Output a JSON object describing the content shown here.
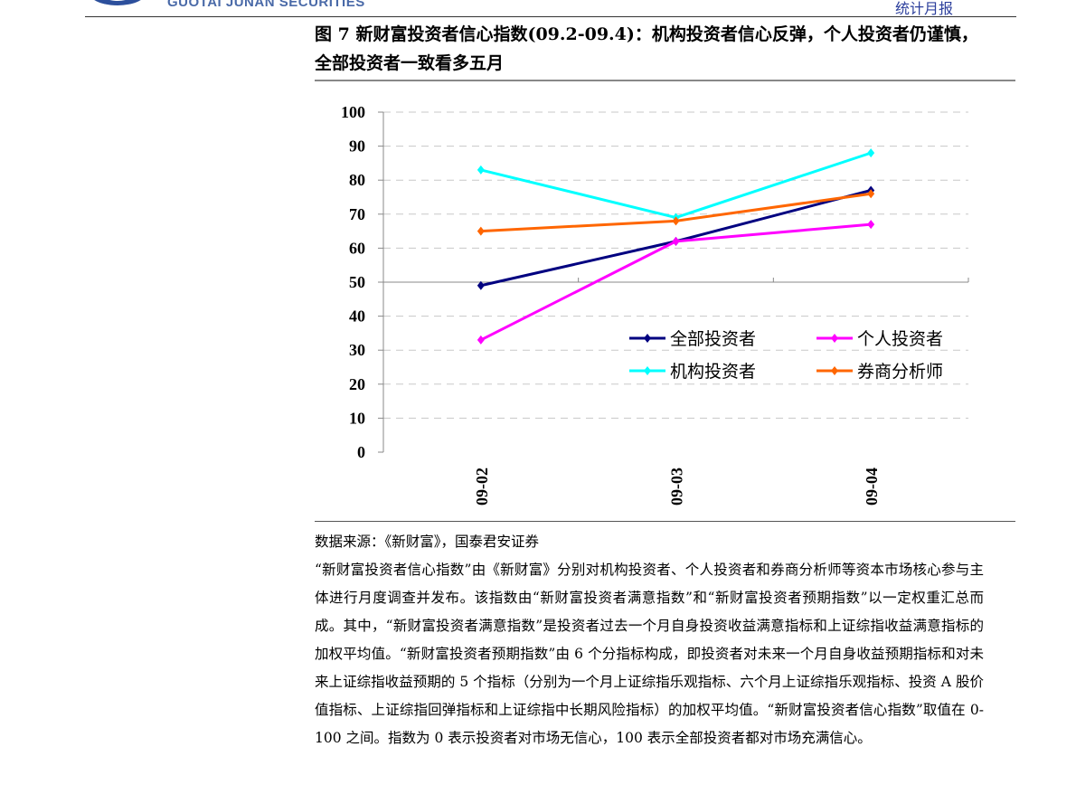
{
  "header": {
    "brand": "GUOTAI JUNAN SECURITIES",
    "report_type": "统计月报",
    "brand_color": "#2c4f9c"
  },
  "figure": {
    "title": "图 7  新财富投资者信心指数(09.2-09.4)：机构投资者信心反弹，个人投资者仍谨慎，全部投资者一致看多五月"
  },
  "chart_data": {
    "type": "line",
    "categories": [
      "09-02",
      "09-03",
      "09-04"
    ],
    "ylim": [
      0,
      100
    ],
    "yticks": [
      0,
      10,
      20,
      30,
      40,
      50,
      60,
      70,
      80,
      90,
      100
    ],
    "x_axis_crosses_at": 50,
    "grid": "horizontal dashed",
    "legend_placement": "lower-right",
    "series": [
      {
        "name": "全部投资者",
        "values": [
          49,
          62,
          77
        ],
        "color": "#000080"
      },
      {
        "name": "个人投资者",
        "values": [
          33,
          62,
          67
        ],
        "color": "#ff00ff"
      },
      {
        "name": "机构投资者",
        "values": [
          83,
          69,
          88
        ],
        "color": "#00ffff"
      },
      {
        "name": "券商分析师",
        "values": [
          65,
          68,
          76
        ],
        "color": "#ff6600"
      }
    ]
  },
  "source": "数据来源：《新财富》，国泰君安证券",
  "body": "“新财富投资者信心指数”由《新财富》分别对机构投资者、个人投资者和券商分析师等资本市场核心参与主体进行月度调查并发布。该指数由“新财富投资者满意指数”和“新财富投资者预期指数”以一定权重汇总而成。其中，“新财富投资者满意指数”是投资者过去一个月自身投资收益满意指标和上证综指收益满意指标的加权平均值。“新财富投资者预期指数”由 6 个分指标构成，即投资者对未来一个月自身收益预期指标和对未来上证综指收益预期的 5 个指标（分别为一个月上证综指乐观指标、六个月上证综指乐观指标、投资 A 股价值指标、上证综指回弹指标和上证综指中长期风险指标）的加权平均值。“新财富投资者信心指数”取值在 0-100 之间。指数为 0 表示投资者对市场无信心，100 表示全部投资者都对市场充满信心。"
}
